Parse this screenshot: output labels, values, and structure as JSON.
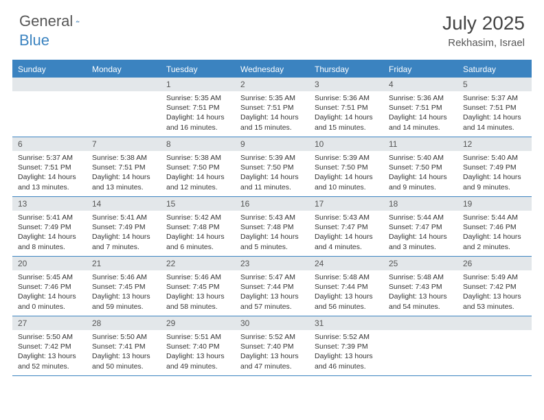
{
  "brand": {
    "general": "General",
    "blue": "Blue"
  },
  "header": {
    "title": "July 2025",
    "location": "Rekhasim, Israel"
  },
  "colors": {
    "accent": "#3b83c0",
    "daybar": "#e3e7ea",
    "text": "#333333",
    "header_text": "#555555"
  },
  "weekdays": [
    "Sunday",
    "Monday",
    "Tuesday",
    "Wednesday",
    "Thursday",
    "Friday",
    "Saturday"
  ],
  "weeks": [
    [
      {
        "empty": true
      },
      {
        "empty": true
      },
      {
        "day": "1",
        "sunrise": "5:35 AM",
        "sunset": "7:51 PM",
        "daylight": "14 hours and 16 minutes."
      },
      {
        "day": "2",
        "sunrise": "5:35 AM",
        "sunset": "7:51 PM",
        "daylight": "14 hours and 15 minutes."
      },
      {
        "day": "3",
        "sunrise": "5:36 AM",
        "sunset": "7:51 PM",
        "daylight": "14 hours and 15 minutes."
      },
      {
        "day": "4",
        "sunrise": "5:36 AM",
        "sunset": "7:51 PM",
        "daylight": "14 hours and 14 minutes."
      },
      {
        "day": "5",
        "sunrise": "5:37 AM",
        "sunset": "7:51 PM",
        "daylight": "14 hours and 14 minutes."
      }
    ],
    [
      {
        "day": "6",
        "sunrise": "5:37 AM",
        "sunset": "7:51 PM",
        "daylight": "14 hours and 13 minutes."
      },
      {
        "day": "7",
        "sunrise": "5:38 AM",
        "sunset": "7:51 PM",
        "daylight": "14 hours and 13 minutes."
      },
      {
        "day": "8",
        "sunrise": "5:38 AM",
        "sunset": "7:50 PM",
        "daylight": "14 hours and 12 minutes."
      },
      {
        "day": "9",
        "sunrise": "5:39 AM",
        "sunset": "7:50 PM",
        "daylight": "14 hours and 11 minutes."
      },
      {
        "day": "10",
        "sunrise": "5:39 AM",
        "sunset": "7:50 PM",
        "daylight": "14 hours and 10 minutes."
      },
      {
        "day": "11",
        "sunrise": "5:40 AM",
        "sunset": "7:50 PM",
        "daylight": "14 hours and 9 minutes."
      },
      {
        "day": "12",
        "sunrise": "5:40 AM",
        "sunset": "7:49 PM",
        "daylight": "14 hours and 9 minutes."
      }
    ],
    [
      {
        "day": "13",
        "sunrise": "5:41 AM",
        "sunset": "7:49 PM",
        "daylight": "14 hours and 8 minutes."
      },
      {
        "day": "14",
        "sunrise": "5:41 AM",
        "sunset": "7:49 PM",
        "daylight": "14 hours and 7 minutes."
      },
      {
        "day": "15",
        "sunrise": "5:42 AM",
        "sunset": "7:48 PM",
        "daylight": "14 hours and 6 minutes."
      },
      {
        "day": "16",
        "sunrise": "5:43 AM",
        "sunset": "7:48 PM",
        "daylight": "14 hours and 5 minutes."
      },
      {
        "day": "17",
        "sunrise": "5:43 AM",
        "sunset": "7:47 PM",
        "daylight": "14 hours and 4 minutes."
      },
      {
        "day": "18",
        "sunrise": "5:44 AM",
        "sunset": "7:47 PM",
        "daylight": "14 hours and 3 minutes."
      },
      {
        "day": "19",
        "sunrise": "5:44 AM",
        "sunset": "7:46 PM",
        "daylight": "14 hours and 2 minutes."
      }
    ],
    [
      {
        "day": "20",
        "sunrise": "5:45 AM",
        "sunset": "7:46 PM",
        "daylight": "14 hours and 0 minutes."
      },
      {
        "day": "21",
        "sunrise": "5:46 AM",
        "sunset": "7:45 PM",
        "daylight": "13 hours and 59 minutes."
      },
      {
        "day": "22",
        "sunrise": "5:46 AM",
        "sunset": "7:45 PM",
        "daylight": "13 hours and 58 minutes."
      },
      {
        "day": "23",
        "sunrise": "5:47 AM",
        "sunset": "7:44 PM",
        "daylight": "13 hours and 57 minutes."
      },
      {
        "day": "24",
        "sunrise": "5:48 AM",
        "sunset": "7:44 PM",
        "daylight": "13 hours and 56 minutes."
      },
      {
        "day": "25",
        "sunrise": "5:48 AM",
        "sunset": "7:43 PM",
        "daylight": "13 hours and 54 minutes."
      },
      {
        "day": "26",
        "sunrise": "5:49 AM",
        "sunset": "7:42 PM",
        "daylight": "13 hours and 53 minutes."
      }
    ],
    [
      {
        "day": "27",
        "sunrise": "5:50 AM",
        "sunset": "7:42 PM",
        "daylight": "13 hours and 52 minutes."
      },
      {
        "day": "28",
        "sunrise": "5:50 AM",
        "sunset": "7:41 PM",
        "daylight": "13 hours and 50 minutes."
      },
      {
        "day": "29",
        "sunrise": "5:51 AM",
        "sunset": "7:40 PM",
        "daylight": "13 hours and 49 minutes."
      },
      {
        "day": "30",
        "sunrise": "5:52 AM",
        "sunset": "7:40 PM",
        "daylight": "13 hours and 47 minutes."
      },
      {
        "day": "31",
        "sunrise": "5:52 AM",
        "sunset": "7:39 PM",
        "daylight": "13 hours and 46 minutes."
      },
      {
        "empty": true
      },
      {
        "empty": true
      }
    ]
  ],
  "labels": {
    "sunrise": "Sunrise:",
    "sunset": "Sunset:",
    "daylight": "Daylight:"
  }
}
